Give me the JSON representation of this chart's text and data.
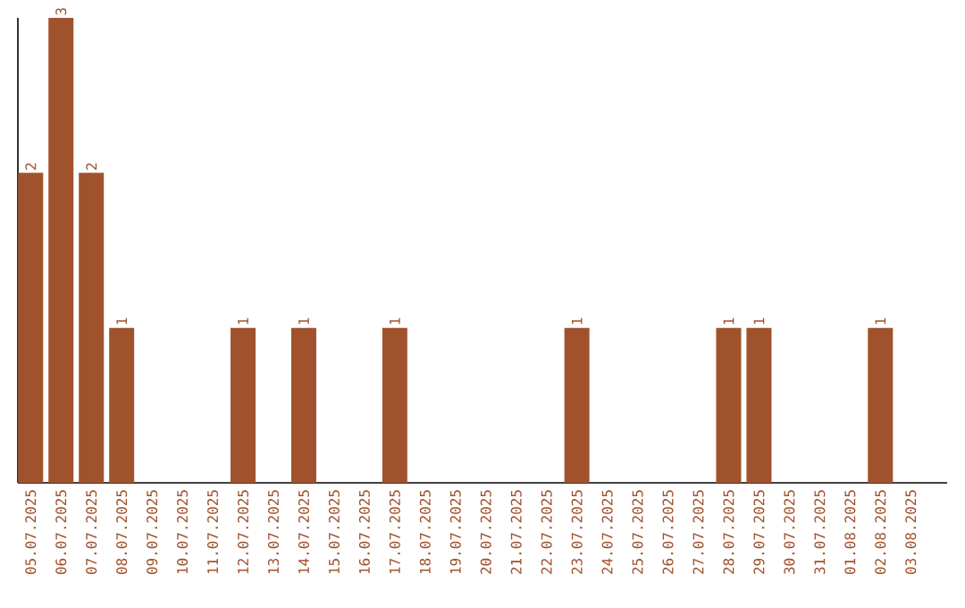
{
  "chart_data": {
    "type": "bar",
    "categories": [
      "05.07.2025",
      "06.07.2025",
      "07.07.2025",
      "08.07.2025",
      "09.07.2025",
      "10.07.2025",
      "11.07.2025",
      "12.07.2025",
      "13.07.2025",
      "14.07.2025",
      "15.07.2025",
      "16.07.2025",
      "17.07.2025",
      "18.07.2025",
      "19.07.2025",
      "20.07.2025",
      "21.07.2025",
      "22.07.2025",
      "23.07.2025",
      "24.07.2025",
      "25.07.2025",
      "26.07.2025",
      "27.07.2025",
      "28.07.2025",
      "29.07.2025",
      "30.07.2025",
      "31.07.2025",
      "01.08.2025",
      "02.08.2025",
      "03.08.2025"
    ],
    "values": [
      2,
      3,
      2,
      1,
      0,
      0,
      0,
      1,
      0,
      1,
      0,
      0,
      1,
      0,
      0,
      0,
      0,
      0,
      1,
      0,
      0,
      0,
      0,
      1,
      1,
      0,
      0,
      0,
      1,
      0
    ],
    "value_labels": [
      "2",
      "3",
      "2",
      "1",
      null,
      null,
      null,
      "1",
      null,
      "1",
      null,
      null,
      "1",
      null,
      null,
      null,
      null,
      null,
      "1",
      null,
      null,
      null,
      null,
      "1",
      "1",
      null,
      null,
      null,
      "1",
      null
    ],
    "color": "#a0522d"
  }
}
